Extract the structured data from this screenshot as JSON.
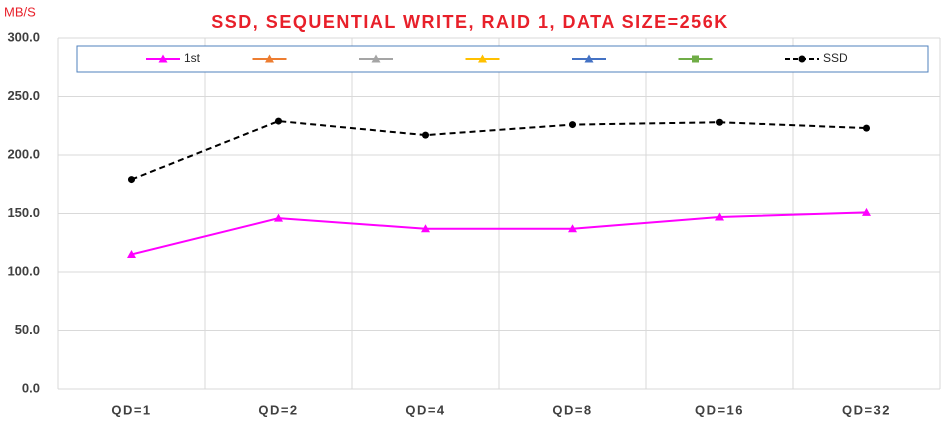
{
  "chart_data": {
    "type": "line",
    "title": "SSD, SEQUENTIAL WRITE, RAID 1, DATA SIZE=256K",
    "y_label": "MB/S",
    "categories": [
      "QD=1",
      "QD=2",
      "QD=4",
      "QD=8",
      "QD=16",
      "QD=32"
    ],
    "series": [
      {
        "name": "1st",
        "color": "#ff00ff",
        "marker": "triangle",
        "dashed": false,
        "values": [
          115,
          146,
          137,
          137,
          147,
          151
        ]
      },
      {
        "color": "#ed7d31",
        "marker": "triangle",
        "dashed": false,
        "values": [
          null,
          null,
          null,
          null,
          null,
          null
        ]
      },
      {
        "color": "#a5a5a5",
        "marker": "triangle",
        "dashed": false,
        "values": [
          null,
          null,
          null,
          null,
          null,
          null
        ]
      },
      {
        "color": "#ffc000",
        "marker": "triangle",
        "dashed": false,
        "values": [
          null,
          null,
          null,
          null,
          null,
          null
        ]
      },
      {
        "color": "#4472c4",
        "marker": "triangle",
        "dashed": false,
        "values": [
          null,
          null,
          null,
          null,
          null,
          null
        ]
      },
      {
        "color": "#70ad47",
        "marker": "square",
        "dashed": false,
        "values": [
          null,
          null,
          null,
          null,
          null,
          null
        ]
      },
      {
        "name": "SSD",
        "color": "#000000",
        "marker": "circle",
        "dashed": true,
        "values": [
          179,
          229,
          217,
          226,
          228,
          223
        ]
      }
    ],
    "ylim": [
      0,
      300
    ],
    "yticks": [
      {
        "value": 0,
        "label": "0.0"
      },
      {
        "value": 50,
        "label": "50.0"
      },
      {
        "value": 100,
        "label": "100.0"
      },
      {
        "value": 150,
        "label": "150.0"
      },
      {
        "value": 200,
        "label": "200.0"
      },
      {
        "value": 250,
        "label": "250.0"
      },
      {
        "value": 300,
        "label": "300.0"
      }
    ],
    "grid": true,
    "legend": "top"
  }
}
